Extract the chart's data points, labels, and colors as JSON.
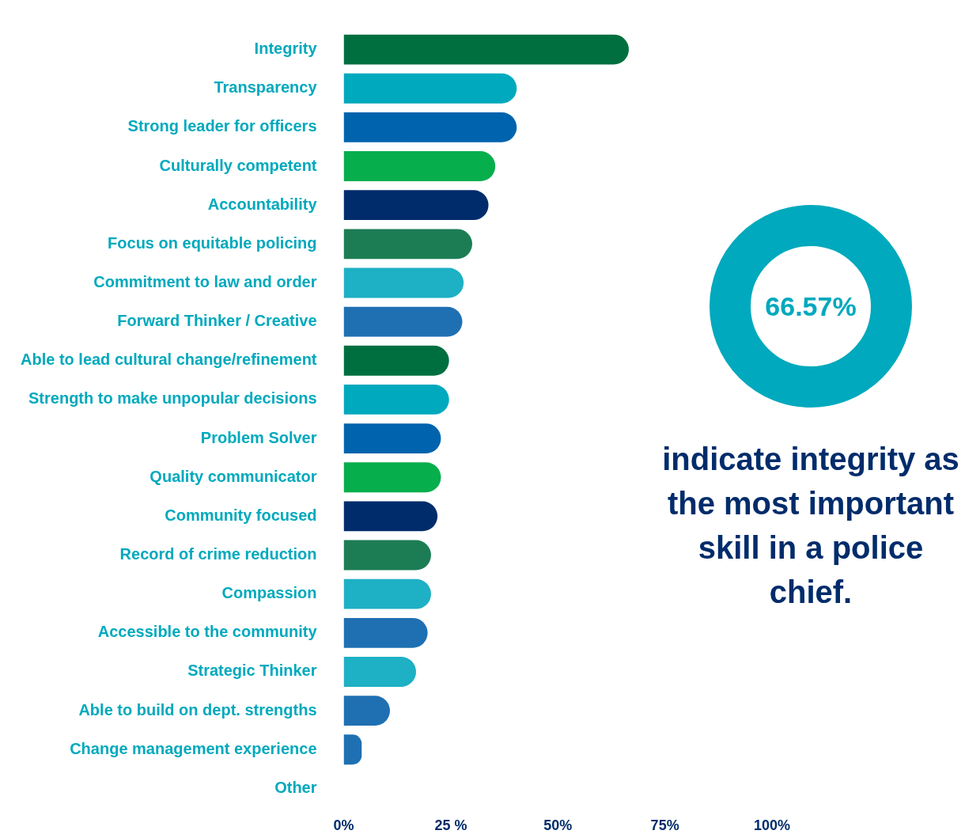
{
  "chart_data": {
    "type": "bar",
    "orientation": "horizontal",
    "categories": [
      "Integrity",
      "Transparency",
      "Strong leader for officers",
      "Culturally competent",
      "Accountability",
      "Focus on equitable policing",
      "Commitment to law and order",
      "Forward Thinker / Creative",
      "Able to lead cultural change/refinement",
      "Strength to make unpopular decisions",
      "Problem Solver",
      "Quality communicator",
      "Community focused",
      "Record of crime reduction",
      "Compassion",
      "Accessible to the community",
      "Strategic Thinker",
      "Able to build on dept. strengths",
      "Change management experience",
      "Other"
    ],
    "values": [
      66.57,
      40.4,
      40.4,
      35.4,
      33.8,
      30,
      28,
      27.7,
      24.6,
      24.6,
      22.7,
      22.7,
      21.9,
      20.4,
      20.4,
      19.6,
      16.9,
      10.8,
      4.2,
      0
    ],
    "colors": [
      "#006f3f",
      "#00a9bd",
      "#0063ae",
      "#06ae4c",
      "#002c6b",
      "#1c7d55",
      "#1eb0c4",
      "#1f70b2",
      "#006f3f",
      "#00a9bd",
      "#0063ae",
      "#06ae4c",
      "#002c6b",
      "#1c7d55",
      "#1eb0c4",
      "#1f70b2",
      "#1eb0c4",
      "#1f70b2",
      "#1f70b2",
      "#1f70b2"
    ],
    "xlim": [
      0,
      100
    ],
    "xticks": [
      {
        "value": 0,
        "label": "0%"
      },
      {
        "value": 25,
        "label": "25 %"
      },
      {
        "value": 50,
        "label": "50%"
      },
      {
        "value": 75,
        "label": "75%"
      },
      {
        "value": 100,
        "label": "100%"
      }
    ],
    "annotations": [
      "66.57%",
      "indicate integrity as the most important skill in a police chief."
    ]
  }
}
